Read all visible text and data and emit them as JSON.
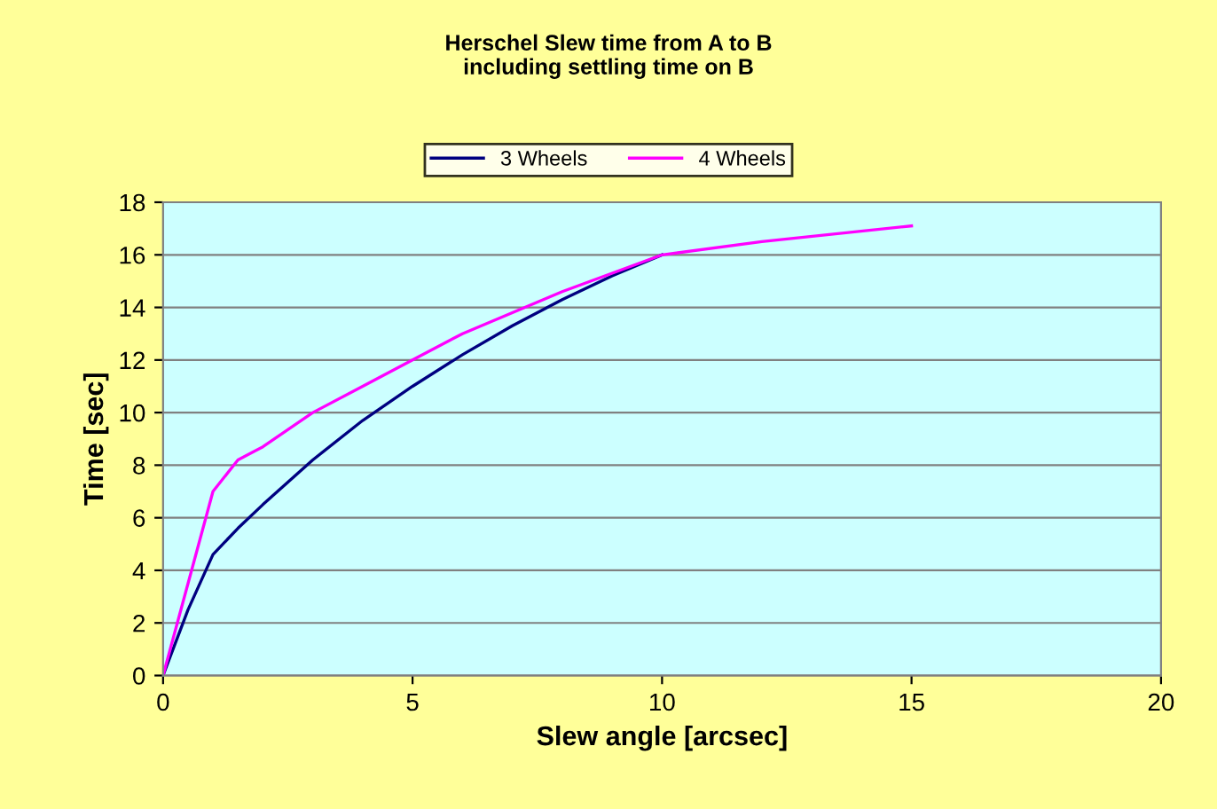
{
  "chart_data": {
    "type": "line",
    "title": "Herschel Slew time from A to B\nincluding settling time on B",
    "xlabel": "Slew angle [arcsec]",
    "ylabel": "Time [sec]",
    "xlim": [
      0,
      20
    ],
    "xticks": [
      0,
      5,
      10,
      15,
      20
    ],
    "ylim": [
      0,
      18
    ],
    "yticks": [
      0,
      2,
      4,
      6,
      8,
      10,
      12,
      14,
      16,
      18
    ],
    "grid": "y",
    "legend": "top",
    "marker": "none",
    "line_style": "solid",
    "series": [
      {
        "name": "3 Wheels",
        "color": "#000080",
        "x": [
          0,
          0.5,
          1,
          1.5,
          2,
          3,
          4,
          5,
          6,
          7,
          8,
          9,
          10
        ],
        "values": [
          0,
          2.5,
          4.6,
          5.6,
          6.5,
          8.2,
          9.7,
          11,
          12.2,
          13.3,
          14.3,
          15.2,
          16
        ]
      },
      {
        "name": "4 Wheels",
        "color": "#ff00ff",
        "x": [
          0,
          0.5,
          1,
          1.5,
          2,
          3,
          4,
          5,
          6,
          7,
          8,
          9,
          10,
          12,
          15
        ],
        "values": [
          0,
          3.5,
          7,
          8.2,
          8.7,
          10,
          11,
          12,
          13,
          13.8,
          14.6,
          15.3,
          16,
          16.5,
          17.1
        ]
      }
    ]
  }
}
